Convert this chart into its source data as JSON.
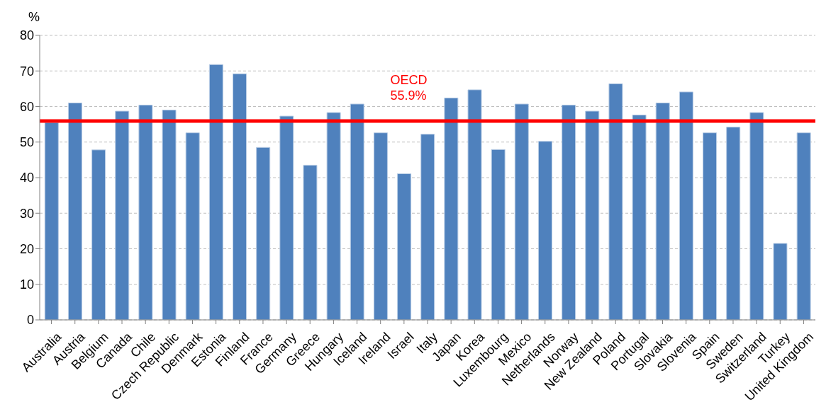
{
  "chart_data": {
    "type": "bar",
    "ylabel": "%",
    "categories": [
      "Australia",
      "Austria",
      "Belgium",
      "Canada",
      "Chile",
      "Czech Republic",
      "Denmark",
      "Estonia",
      "Finland",
      "France",
      "Germany",
      "Greece",
      "Hungary",
      "Iceland",
      "Ireland",
      "Israel",
      "Italy",
      "Japan",
      "Korea",
      "Luxembourg",
      "Mexico",
      "Netherlands",
      "Norway",
      "New Zealand",
      "Poland",
      "Portugal",
      "Slovakia",
      "Slovenia",
      "Spain",
      "Sweden",
      "Switzerland",
      "Turkey",
      "United Kingdom"
    ],
    "values": [
      55.5,
      61,
      47.8,
      58.7,
      60.4,
      59,
      52.6,
      71.8,
      69.2,
      48.5,
      57.3,
      43.5,
      58.3,
      60.7,
      52.6,
      41.1,
      52.2,
      62.4,
      64.7,
      47.9,
      60.7,
      50.2,
      60.4,
      58.7,
      66.4,
      57.6,
      61,
      64.1,
      52.6,
      54.2,
      58.3,
      21.5,
      52.6
    ],
    "color": "#4f81bd",
    "ylim": [
      0,
      80
    ],
    "yticks": [
      0,
      10,
      20,
      30,
      40,
      50,
      60,
      70,
      80
    ],
    "grid": "y",
    "ref_lines": [
      {
        "axis": "y",
        "value": 55.9,
        "label": "OECD\n55.9%",
        "color": "#ff0000"
      }
    ]
  }
}
